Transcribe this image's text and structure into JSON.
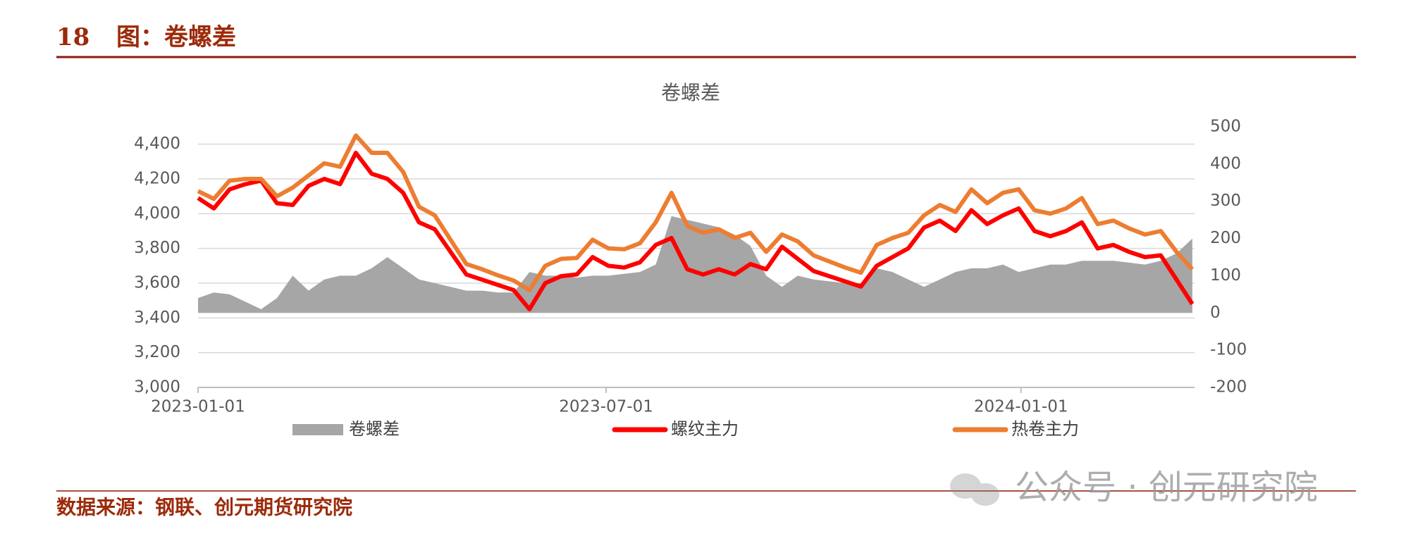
{
  "header": {
    "number": "18",
    "title": "图：卷螺差"
  },
  "source": "数据来源：钢联、创元期货研究院",
  "watermark": "公众号 · 创元研究院",
  "chart_data": {
    "type": "line",
    "title": "卷螺差",
    "x": [
      "2023-01-01",
      "2023-01-08",
      "2023-01-15",
      "2023-01-22",
      "2023-01-29",
      "2023-02-05",
      "2023-02-12",
      "2023-02-19",
      "2023-02-26",
      "2023-03-05",
      "2023-03-12",
      "2023-03-19",
      "2023-03-26",
      "2023-04-02",
      "2023-04-09",
      "2023-04-16",
      "2023-04-23",
      "2023-04-30",
      "2023-05-07",
      "2023-05-14",
      "2023-05-21",
      "2023-05-28",
      "2023-06-04",
      "2023-06-11",
      "2023-06-18",
      "2023-06-25",
      "2023-07-02",
      "2023-07-09",
      "2023-07-16",
      "2023-07-23",
      "2023-07-30",
      "2023-08-06",
      "2023-08-13",
      "2023-08-20",
      "2023-08-27",
      "2023-09-03",
      "2023-09-10",
      "2023-09-17",
      "2023-09-24",
      "2023-10-01",
      "2023-10-08",
      "2023-10-15",
      "2023-10-22",
      "2023-10-29",
      "2023-11-05",
      "2023-11-12",
      "2023-11-19",
      "2023-11-26",
      "2023-12-03",
      "2023-12-10",
      "2023-12-17",
      "2023-12-24",
      "2023-12-31",
      "2024-01-07",
      "2024-01-14",
      "2024-01-21",
      "2024-01-28",
      "2024-02-04",
      "2024-02-11",
      "2024-02-18",
      "2024-02-25",
      "2024-03-03",
      "2024-03-10",
      "2024-03-17"
    ],
    "xlim": [
      "2023-01-01",
      "2024-03-18"
    ],
    "xticks": [
      "2023-01-01",
      "2023-07-01",
      "2024-01-01"
    ],
    "ylim": [
      3000,
      4500
    ],
    "yticks": [
      {
        "value": 3000,
        "label": "3,000"
      },
      {
        "value": 3200,
        "label": "3,200"
      },
      {
        "value": 3400,
        "label": "3,400"
      },
      {
        "value": 3600,
        "label": "3,600"
      },
      {
        "value": 3800,
        "label": "3,800"
      },
      {
        "value": 4000,
        "label": "4,000"
      },
      {
        "value": 4200,
        "label": "4,200"
      },
      {
        "value": 4400,
        "label": "4,400"
      }
    ],
    "y2lim": [
      -200,
      500
    ],
    "y2ticks": [
      -200,
      -100,
      0,
      100,
      200,
      300,
      400,
      500
    ],
    "grid": true,
    "legend": "bottom",
    "series": [
      {
        "name": "卷螺差",
        "kind": "area",
        "axis": "y2",
        "color": "#a6a6a6",
        "values": [
          40,
          55,
          50,
          30,
          10,
          40,
          100,
          60,
          90,
          100,
          100,
          120,
          150,
          120,
          90,
          80,
          70,
          60,
          60,
          55,
          55,
          110,
          100,
          100,
          95,
          100,
          100,
          105,
          110,
          130,
          260,
          250,
          240,
          230,
          210,
          180,
          100,
          70,
          100,
          90,
          85,
          80,
          80,
          120,
          110,
          90,
          70,
          90,
          110,
          120,
          120,
          130,
          110,
          120,
          130,
          130,
          140,
          140,
          140,
          135,
          130,
          140,
          160,
          200
        ]
      },
      {
        "name": "螺纹主力",
        "kind": "line",
        "color": "#ff0000",
        "values": [
          4090,
          4030,
          4140,
          4170,
          4190,
          4060,
          4050,
          4160,
          4200,
          4170,
          4350,
          4230,
          4200,
          4120,
          3950,
          3910,
          3780,
          3650,
          3620,
          3590,
          3560,
          3450,
          3600,
          3640,
          3650,
          3750,
          3700,
          3690,
          3720,
          3820,
          3860,
          3680,
          3650,
          3680,
          3650,
          3710,
          3680,
          3810,
          3740,
          3670,
          3640,
          3610,
          3580,
          3700,
          3750,
          3800,
          3920,
          3960,
          3900,
          4020,
          3940,
          3990,
          4030,
          3900,
          3870,
          3900,
          3950,
          3800,
          3820,
          3780,
          3750,
          3760,
          3620,
          3480
        ]
      },
      {
        "name": "热卷主力",
        "kind": "line",
        "color": "#ed7d31",
        "values": [
          4130,
          4085,
          4190,
          4200,
          4200,
          4100,
          4150,
          4220,
          4290,
          4270,
          4450,
          4350,
          4350,
          4240,
          4040,
          3990,
          3850,
          3710,
          3680,
          3645,
          3615,
          3560,
          3700,
          3740,
          3745,
          3850,
          3800,
          3795,
          3830,
          3950,
          4120,
          3930,
          3890,
          3910,
          3860,
          3890,
          3780,
          3880,
          3840,
          3760,
          3725,
          3690,
          3660,
          3820,
          3860,
          3890,
          3990,
          4050,
          4010,
          4140,
          4060,
          4120,
          4140,
          4020,
          4000,
          4030,
          4090,
          3940,
          3960,
          3915,
          3880,
          3900,
          3780,
          3680
        ]
      }
    ]
  }
}
